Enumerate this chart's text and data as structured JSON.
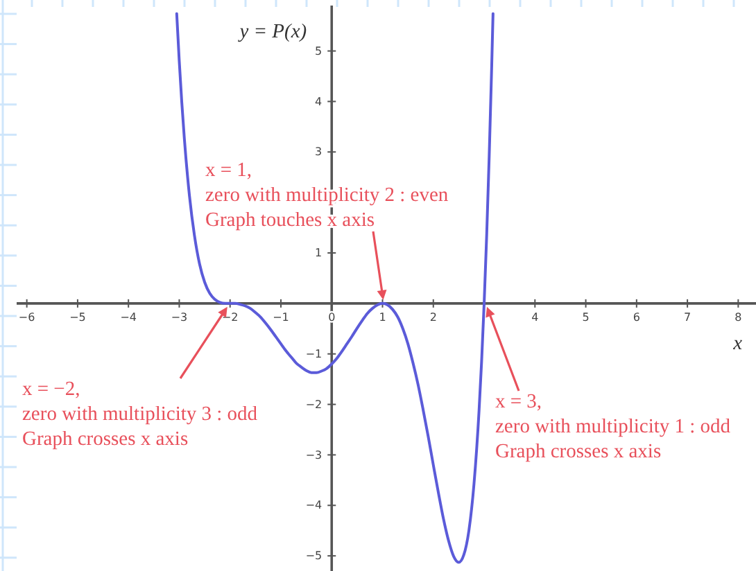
{
  "chart_data": {
    "type": "line",
    "xlabel": "x",
    "ylabel": "y = P(x)",
    "xlim": [
      -6.2,
      8.35
    ],
    "ylim": [
      -5.3,
      5.9
    ],
    "xticks": [
      -6,
      -5,
      -4,
      -3,
      -2,
      -1,
      0,
      1,
      2,
      {
        "value": 3,
        "label": null
      },
      4,
      5,
      6,
      7,
      8
    ],
    "yticks": [
      -5,
      -4,
      -3,
      -2,
      -1,
      1,
      {
        "value": 2,
        "label": null
      },
      3,
      4,
      5
    ],
    "x": [
      -3.05,
      -3,
      -2.95,
      -2.9,
      -2.8,
      -2.7,
      -2.6,
      -2.5,
      -2.4,
      -2.3,
      -2.2,
      -2.1,
      -2,
      -1.9,
      -1.8,
      -1.7,
      -1.6,
      -1.5,
      -1.4,
      -1.3,
      -1.2,
      -1.1,
      -1,
      -0.9,
      -0.8,
      -0.7,
      -0.6,
      -0.5,
      -0.4,
      -0.3,
      -0.2,
      -0.1,
      0,
      0.1,
      0.2,
      0.3,
      0.4,
      0.5,
      0.6,
      0.7,
      0.8,
      0.9,
      1,
      1.1,
      1.2,
      1.3,
      1.4,
      1.5,
      1.6,
      1.7,
      1.8,
      1.9,
      2,
      2.1,
      2.2,
      2.3,
      2.4,
      2.5,
      2.6,
      2.7,
      2.8,
      2.9,
      2.95,
      3,
      3.05,
      3.1,
      3.15,
      3.175
    ],
    "series": [
      {
        "color": "#5b5bd9",
        "values": [
          5.74,
          4.8,
          3.98,
          3.27,
          2.14,
          1.34,
          0.78,
          0.42,
          0.2,
          0.08,
          0.02,
          0,
          0,
          0,
          -0.02,
          -0.05,
          -0.1,
          -0.18,
          -0.27,
          -0.39,
          -0.52,
          -0.66,
          -0.8,
          -0.94,
          -1.06,
          -1.18,
          -1.26,
          -1.33,
          -1.37,
          -1.37,
          -1.34,
          -1.29,
          -1.2,
          -1.09,
          -0.95,
          -0.8,
          -0.65,
          -0.49,
          -0.34,
          -0.2,
          -0.1,
          -0.03,
          0,
          -0.03,
          -0.12,
          -0.27,
          -0.5,
          -0.8,
          -1.18,
          -1.61,
          -2.11,
          -2.64,
          -3.2,
          -3.75,
          -4.27,
          -4.7,
          -5.01,
          -5.13,
          -4.98,
          -4.5,
          -3.58,
          -2.12,
          -1.15,
          0,
          1.35,
          2.93,
          4.74,
          5.74
        ]
      }
    ],
    "annotations": [
      "x = 1,\nzero with multiplicity 2 : even\nGraph touches x axis",
      "x = −2,\nzero with multiplicity 3 : odd\nGraph crosses x axis",
      "x = 3,\nzero with multiplicity 1 : odd\nGraph crosses x axis"
    ]
  }
}
